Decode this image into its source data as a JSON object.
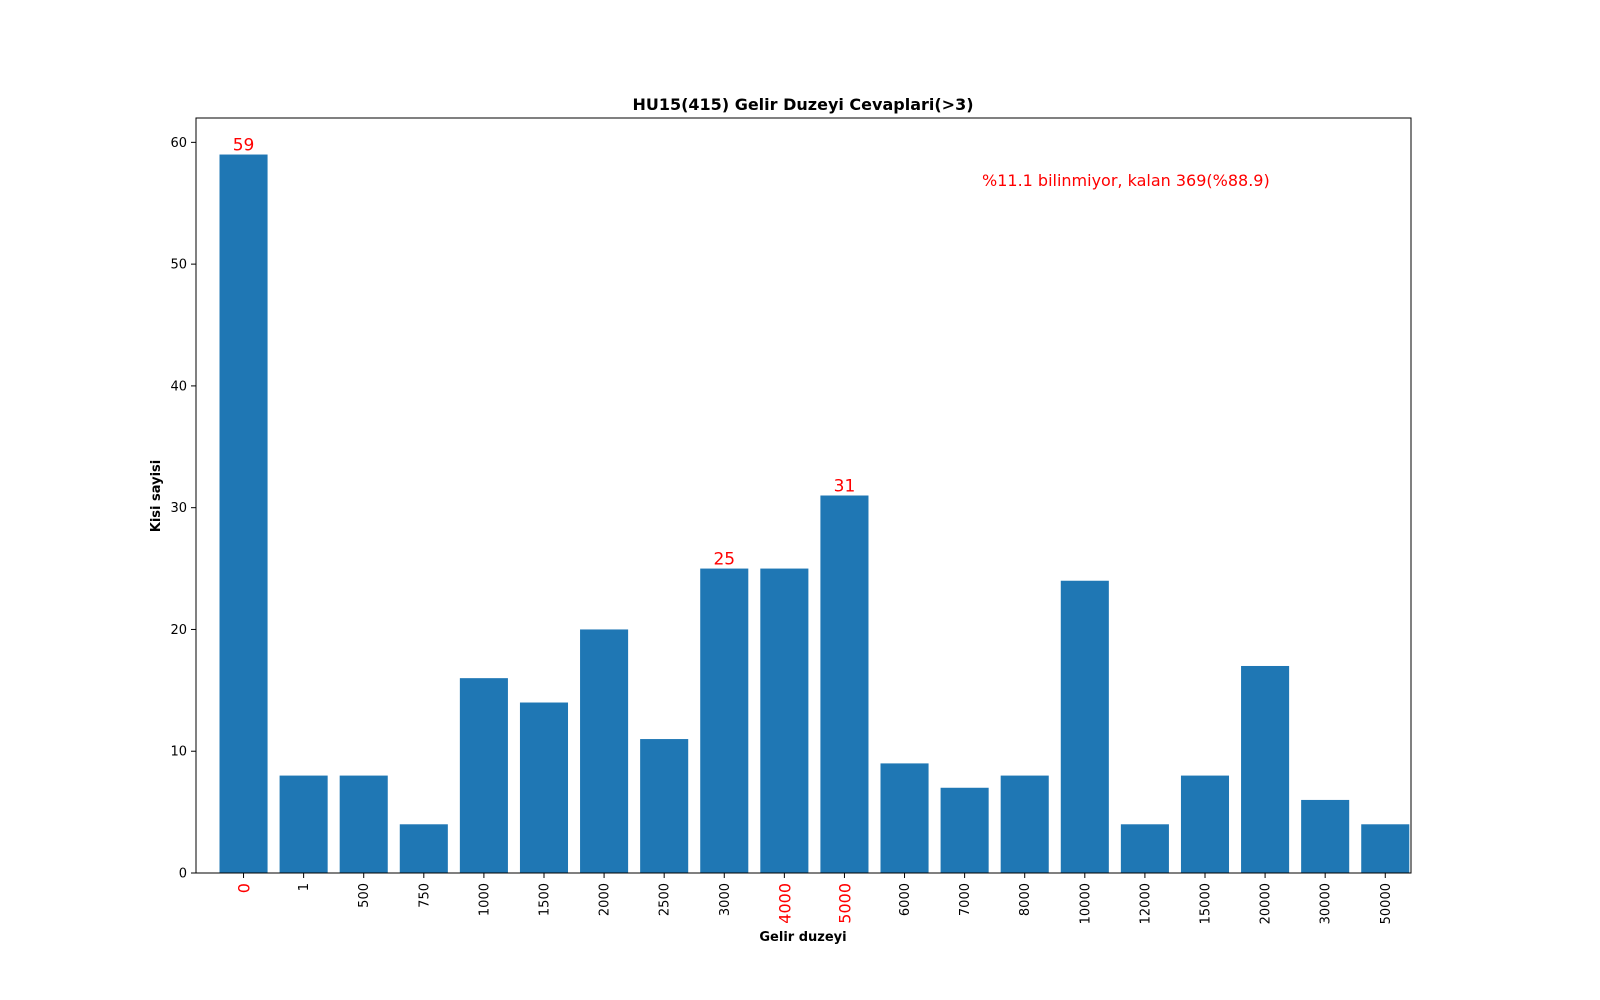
{
  "chart_data": {
    "type": "bar",
    "title": "HU15(415) Gelir Duzeyi Cevaplari(>3)",
    "xlabel": "Gelir duzeyi",
    "ylabel": "Kisi sayisi",
    "categories": [
      "0",
      "1",
      "500",
      "750",
      "1000",
      "1500",
      "2000",
      "2500",
      "3000",
      "4000",
      "5000",
      "6000",
      "7000",
      "8000",
      "10000",
      "12000",
      "15000",
      "20000",
      "30000",
      "50000"
    ],
    "values": [
      59,
      8,
      8,
      4,
      16,
      14,
      20,
      11,
      25,
      25,
      31,
      9,
      7,
      8,
      24,
      4,
      8,
      17,
      6,
      4
    ],
    "ylim": [
      0,
      62
    ],
    "yticks": [
      0,
      10,
      20,
      30,
      40,
      50,
      60
    ],
    "highlighted_categories": [
      "0",
      "4000",
      "5000"
    ],
    "data_labels": [
      {
        "category": "0",
        "text": "59"
      },
      {
        "category": "3000",
        "text": "25"
      },
      {
        "category": "5000",
        "text": "31"
      }
    ],
    "annotation": "%11.1 bilinmiyor, kalan 369(%88.9)",
    "bar_color": "#1f77b4",
    "highlight_color": "#ff0000",
    "grid": false,
    "legend": "none"
  }
}
